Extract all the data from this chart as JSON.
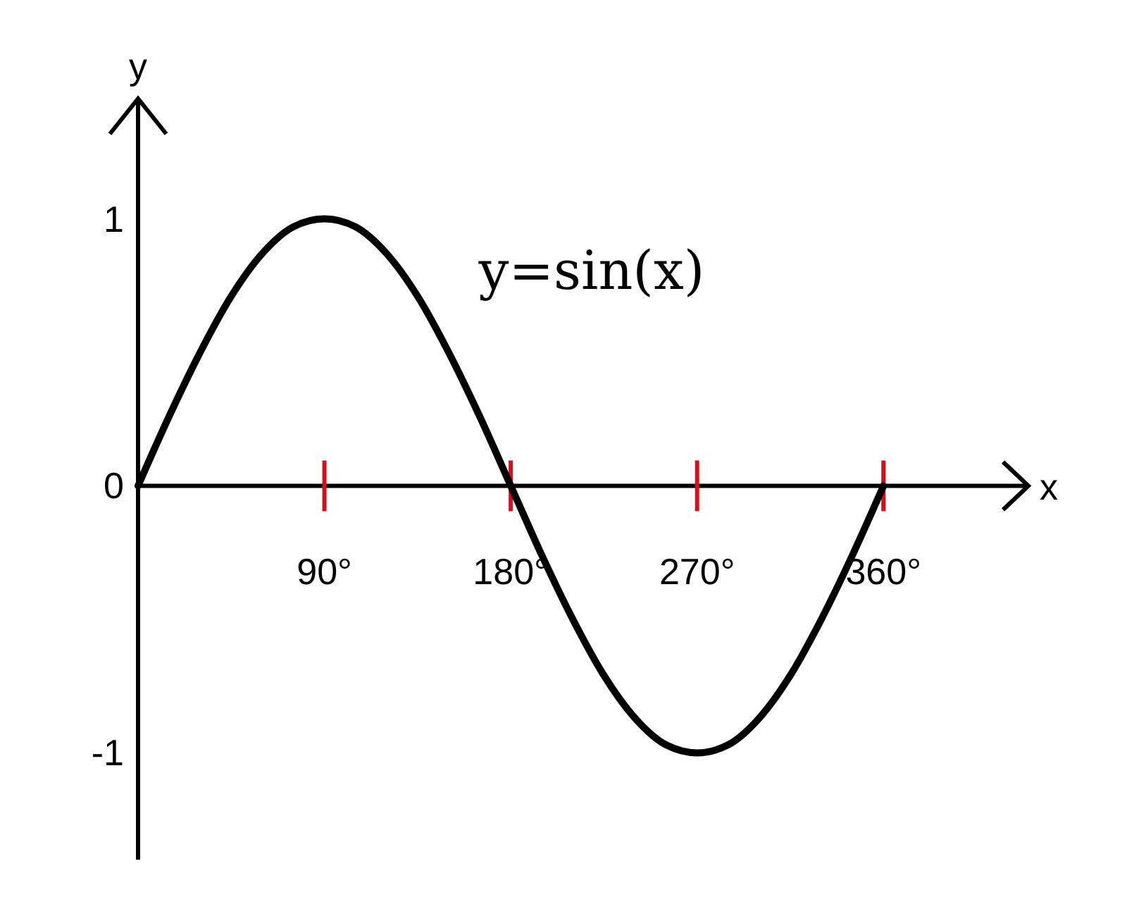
{
  "chart_data": {
    "type": "line",
    "xlabel": "x",
    "ylabel": "y",
    "annotations": [
      "y=sin(x)"
    ],
    "x": [
      0,
      15,
      30,
      45,
      60,
      75,
      90,
      105,
      120,
      135,
      150,
      165,
      180,
      195,
      210,
      225,
      240,
      255,
      270,
      285,
      300,
      315,
      330,
      345,
      360
    ],
    "series": [
      {
        "color": "#000000",
        "values": [
          0,
          0.26,
          0.5,
          0.71,
          0.87,
          0.97,
          1,
          0.97,
          0.87,
          0.71,
          0.5,
          0.26,
          0,
          -0.26,
          -0.5,
          -0.71,
          -0.87,
          -0.97,
          -1,
          -0.97,
          -0.87,
          -0.71,
          -0.5,
          -0.26,
          0
        ]
      }
    ],
    "xlim": [
      0,
      430
    ],
    "ylim": [
      -1.4,
      1.45
    ],
    "xticks": [
      {
        "value": 90,
        "label": "90°"
      },
      {
        "value": 180,
        "label": "180°"
      },
      {
        "value": 270,
        "label": "270°"
      },
      {
        "value": 360,
        "label": "360°"
      }
    ],
    "yticks": [
      -1,
      0,
      1
    ],
    "grid": false,
    "marker": "none",
    "line_style": "solid"
  }
}
